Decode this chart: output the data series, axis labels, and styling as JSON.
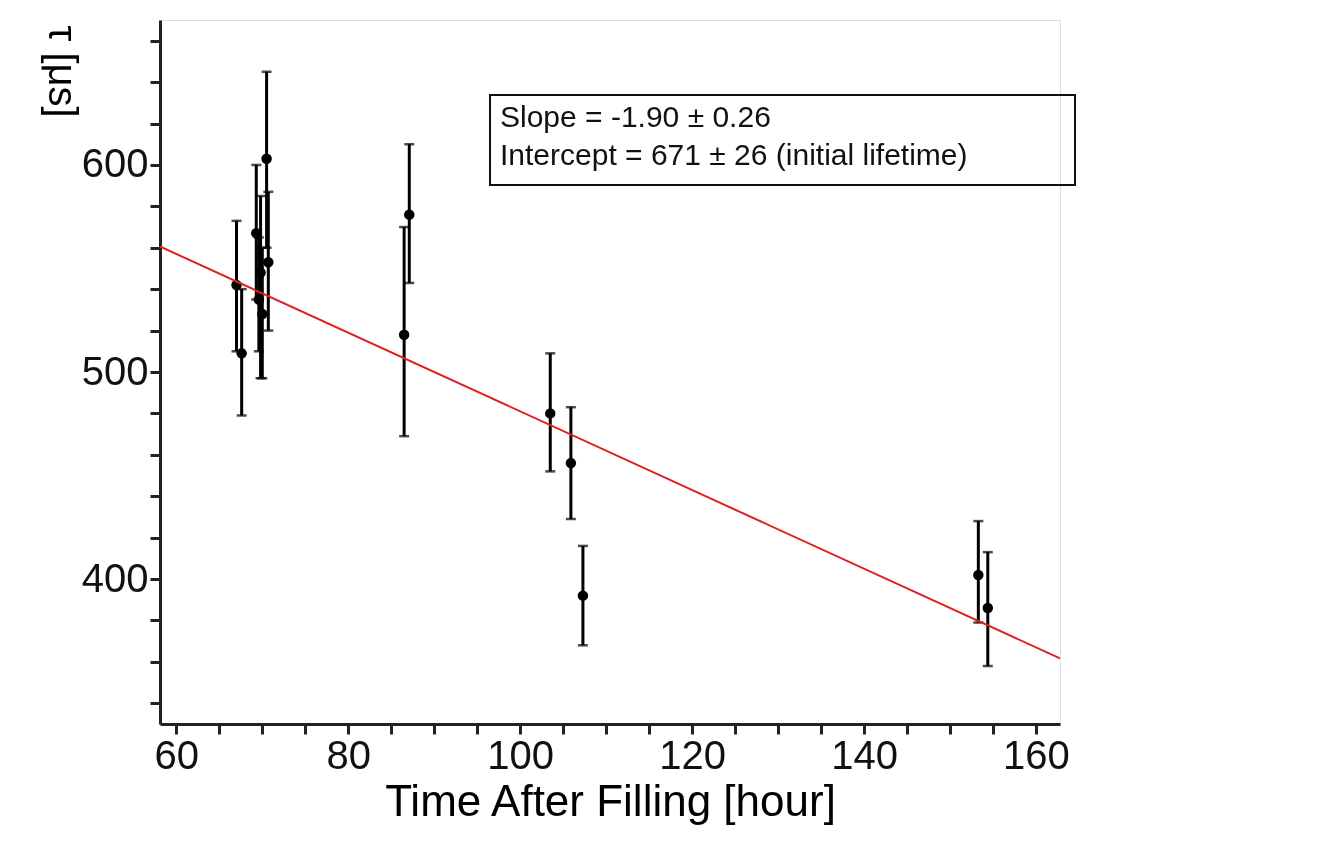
{
  "chart_data": {
    "type": "scatter",
    "xlabel": "Time After Filling [hour]",
    "ylabel": "τ [μs]",
    "annotations": [
      "Slope = -1.90 ± 0.26",
      "Intercept = 671 ± 26 (initial lifetime)"
    ],
    "xlim": [
      58.1,
      162.8
    ],
    "ylim": [
      330,
      670
    ],
    "xticks": [
      60,
      {
        "value": 65,
        "label": null
      },
      {
        "value": 70,
        "label": null
      },
      {
        "value": 75,
        "label": null
      },
      80,
      {
        "value": 85,
        "label": null
      },
      {
        "value": 90,
        "label": null
      },
      {
        "value": 95,
        "label": null
      },
      100,
      {
        "value": 105,
        "label": null
      },
      {
        "value": 110,
        "label": null
      },
      {
        "value": 115,
        "label": null
      },
      120,
      {
        "value": 125,
        "label": null
      },
      {
        "value": 130,
        "label": null
      },
      {
        "value": 135,
        "label": null
      },
      140,
      {
        "value": 145,
        "label": null
      },
      {
        "value": 150,
        "label": null
      },
      {
        "value": 155,
        "label": null
      },
      160
    ],
    "yticks": [
      {
        "value": 340,
        "label": null
      },
      {
        "value": 360,
        "label": null
      },
      {
        "value": 380,
        "label": null
      },
      400,
      {
        "value": 420,
        "label": null
      },
      {
        "value": 440,
        "label": null
      },
      {
        "value": 460,
        "label": null
      },
      {
        "value": 480,
        "label": null
      },
      500,
      {
        "value": 520,
        "label": null
      },
      {
        "value": 540,
        "label": null
      },
      {
        "value": 560,
        "label": null
      },
      {
        "value": 580,
        "label": null
      },
      600,
      {
        "value": 620,
        "label": null
      },
      {
        "value": 640,
        "label": null
      },
      {
        "value": 660,
        "label": null
      }
    ],
    "marker": "circle",
    "series": [
      {
        "color": "#000000",
        "x": [
          67.0,
          67.6,
          69.3,
          69.6,
          69.8,
          70.0,
          70.5,
          70.7,
          86.5,
          87.1,
          103.5,
          105.9,
          107.3,
          153.3,
          154.4
        ],
        "values": [
          542,
          509,
          567,
          535,
          548,
          528,
          603,
          553,
          518,
          576,
          480,
          456,
          392,
          402,
          386
        ],
        "errors": [
          [
            510,
            573
          ],
          [
            479,
            540
          ],
          [
            535,
            600
          ],
          [
            510,
            565
          ],
          [
            497,
            585
          ],
          [
            497,
            560
          ],
          [
            560,
            645
          ],
          [
            520,
            587
          ],
          [
            469,
            570
          ],
          [
            543,
            610
          ],
          [
            452,
            509
          ],
          [
            429,
            483
          ],
          [
            368,
            416
          ],
          [
            379,
            428
          ],
          [
            358,
            413
          ]
        ]
      },
      {
        "type": "line",
        "color": "#e02020",
        "x": [
          58.1,
          162.8
        ],
        "values": [
          560.6,
          361.7
        ],
        "line_style": "solid",
        "marker": "none"
      }
    ]
  }
}
